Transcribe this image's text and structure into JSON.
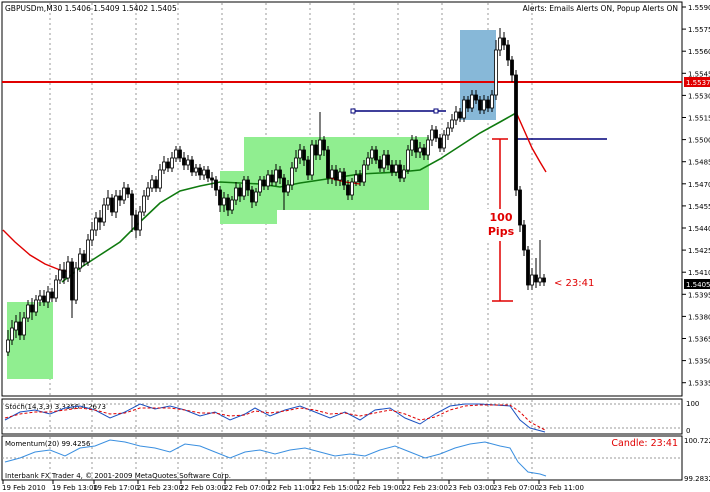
{
  "symbol_header": "GBPUSDm,M30  1.5406 1.5409 1.5402 1.5405",
  "alerts_header": "Alerts:  Emails Alerts ON,  Popup Alerts ON",
  "price_axis": {
    "ticks": [
      "1.5590",
      "1.5575",
      "1.5560",
      "1.5545",
      "1.5530",
      "1.5515",
      "1.5500",
      "1.5485",
      "1.5470",
      "1.5455",
      "1.5440",
      "1.5425",
      "1.5410",
      "1.5395",
      "1.5380",
      "1.5365",
      "1.5350",
      "1.5335"
    ],
    "red_level_label": "1.5537",
    "current_price_label": "1.5405"
  },
  "annotations": {
    "pips_line1": "100",
    "pips_line2": "Pips",
    "countdown": "< 23:41"
  },
  "stoch_panel": {
    "label": "Stoch(14,3,3) 3.3356 4.2673",
    "axis_top": "100",
    "axis_bottom": "0"
  },
  "momentum_panel": {
    "label": "Momentum(20) 99.4256",
    "candle_timer": "Candle: 23:41",
    "axis_top": "100.722",
    "axis_bottom": "99.2832"
  },
  "copyright": "Interbank FX Trader 4, © 2001-2009 MetaQuotes Software Corp.",
  "time_axis": [
    "19 Feb 2010",
    "19 Feb 13:00",
    "19 Feb 17:00",
    "21 Feb 23:00",
    "22 Feb 03:00",
    "22 Feb 07:00",
    "22 Feb 11:00",
    "22 Feb 15:00",
    "22 Feb 19:00",
    "22 Feb 23:00",
    "23 Feb 03:00",
    "23 Feb 07:00",
    "23 Feb 11:00"
  ],
  "colors": {
    "candle": "#000000",
    "ma_green": "#0f7a0f",
    "ma_red": "#e00000",
    "zone_green": "#90ee90",
    "zone_blue": "#87b8d8",
    "level_red": "#e00000",
    "level_navy": "#00007a",
    "momentum": "#3a8fe0"
  }
}
